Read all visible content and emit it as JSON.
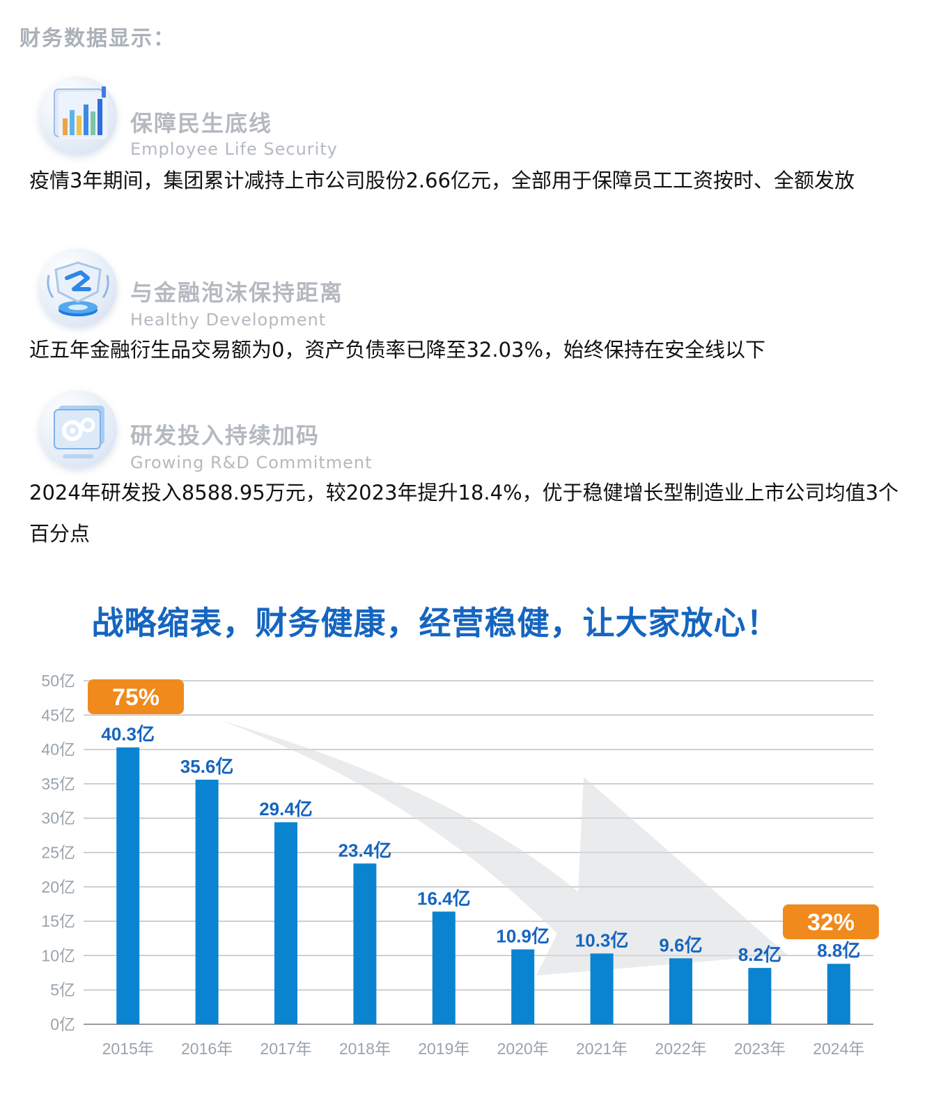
{
  "section_title": "财务数据显示：",
  "features": [
    {
      "icon": "bar-chart-icon",
      "title": "保障民生底线",
      "subtitle": "Employee Life Security",
      "text": "疫情3年期间，集团累计减持上市公司股份2.66亿元，全部用于保障员工工资按时、全额发放"
    },
    {
      "icon": "finance-shield-icon",
      "title": "与金融泡沫保持距离",
      "subtitle": "Healthy Development",
      "text": "近五年金融衍生品交易额为0，资产负债率已降至32.03%，始终保持在安全线以下"
    },
    {
      "icon": "gear-screen-icon",
      "title": "研发投入持续加码",
      "subtitle": "Growing R&D Commitment",
      "text": "2024年研发投入8588.95万元，较2023年提升18.4%，优于稳健增长型制造业上市公司均值3个百分点"
    }
  ],
  "chart_title": "战略缩表，财务健康，经营稳健，让大家放心！",
  "colors": {
    "bar": "#0a84d0",
    "label": "#1565c0",
    "badge": "#f08a1c",
    "axis_text": "#9aa3ab"
  },
  "chart_data": {
    "type": "bar",
    "categories": [
      "2015年",
      "2016年",
      "2017年",
      "2018年",
      "2019年",
      "2020年",
      "2021年",
      "2022年",
      "2023年",
      "2024年"
    ],
    "values": [
      40.3,
      35.6,
      29.4,
      23.4,
      16.4,
      10.9,
      10.3,
      9.6,
      8.2,
      8.8
    ],
    "data_labels": [
      "40.3亿",
      "35.6亿",
      "29.4亿",
      "23.4亿",
      "16.4亿",
      "10.9亿",
      "10.3亿",
      "9.6亿",
      "8.2亿",
      "8.8亿"
    ],
    "y_ticks": [
      "0亿",
      "5亿",
      "10亿",
      "15亿",
      "20亿",
      "25亿",
      "30亿",
      "35亿",
      "40亿",
      "45亿",
      "50亿"
    ],
    "ylim": [
      0,
      50
    ],
    "grid": true,
    "annotations": [
      {
        "text": "75%",
        "category": "2015年"
      },
      {
        "text": "32%",
        "category": "2024年"
      }
    ],
    "trend_arrow": "downward"
  }
}
